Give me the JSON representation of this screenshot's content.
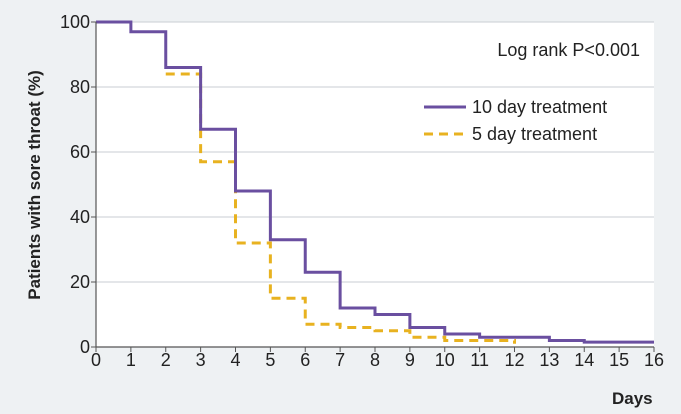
{
  "chart_data": {
    "type": "line",
    "subtype": "step (Kaplan-Meier)",
    "title": "",
    "xlabel": "Days",
    "ylabel": "Patients with sore throat (%)",
    "xlim": [
      0,
      16
    ],
    "ylim": [
      0,
      100
    ],
    "x_ticks": [
      "0",
      "1",
      "2",
      "3",
      "4",
      "5",
      "6",
      "7",
      "8",
      "9",
      "10",
      "11",
      "12",
      "13",
      "14",
      "15",
      "16"
    ],
    "y_ticks": [
      "0",
      "20",
      "40",
      "60",
      "80",
      "100"
    ],
    "grid": "horizontal",
    "legend_position": "top-right",
    "annotation": "Log rank P<0.001",
    "series": [
      {
        "name": "10 day treatment",
        "color": "#6a4fa0",
        "style": "solid",
        "x": [
          0,
          1,
          2,
          3,
          4,
          5,
          6,
          7,
          8,
          9,
          10,
          11,
          13,
          14,
          16
        ],
        "y": [
          100,
          97,
          86,
          67,
          48,
          33,
          23,
          12,
          10,
          6,
          4,
          3,
          2,
          1.5,
          1.5
        ]
      },
      {
        "name": "5 day treatment",
        "color": "#e8b220",
        "style": "dashed",
        "x": [
          2,
          3,
          4,
          5,
          6,
          7,
          8,
          9,
          10,
          12
        ],
        "y": [
          84,
          57,
          32,
          15,
          7,
          6,
          5,
          3,
          2,
          1
        ]
      }
    ]
  }
}
